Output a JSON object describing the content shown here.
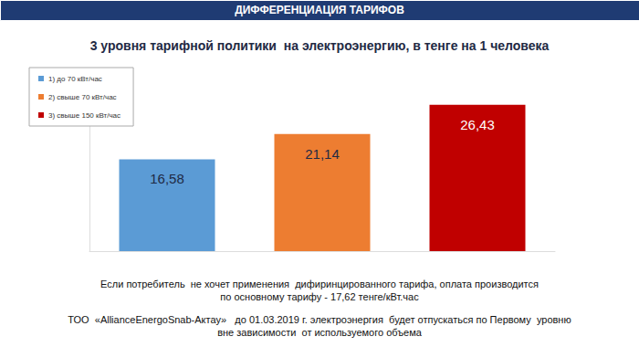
{
  "chart_data": {
    "type": "bar",
    "header": "ДИФФЕРЕНЦИАЦИЯ ТАРИФОВ",
    "title": "3 уровня тарифной политики  на электроэнергию, в тенге на 1 человека",
    "categories": [
      "1) до 70 кВт/час",
      "2) свыше 70 кВт/час",
      "3) свыше 150 кВт/час"
    ],
    "values": [
      16.58,
      21.14,
      26.43
    ],
    "value_labels": [
      "16,58",
      "21,14",
      "26,43"
    ],
    "colors": [
      "#5b9bd5",
      "#ed7d31",
      "#c00000"
    ],
    "ylim": [
      0,
      30
    ],
    "grid": false,
    "legend": "upper left",
    "data_labels": true,
    "tick_labels": false,
    "annotations": [
      "Если потребитель  не хочет применения  дифиринцированного тарифа, оплата производится",
      "по основному тарифу - 17,62 тенге/кВт.час",
      "ТОО  «AllianceEnergoSnab-Актау»   до 01.03.2019 г. электроэнергия  будет отпускаться по Первому  уровню",
      "вне зависимости  от используемого объема"
    ]
  }
}
